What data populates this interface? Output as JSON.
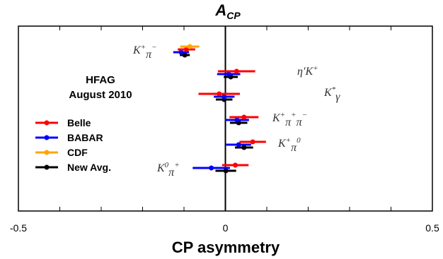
{
  "chart_data": {
    "type": "scatter",
    "title": "A",
    "title_sub": "CP",
    "xlabel": "CP asymmetry",
    "xlim": [
      -0.5,
      0.5
    ],
    "x_ticks": [
      "-0.5",
      "0",
      "0.5"
    ],
    "legend_position": "left",
    "annotations": [
      "HFAG",
      "August 2010"
    ],
    "series": [
      {
        "name": "Belle",
        "color": "#ff0000"
      },
      {
        "name": "BABAR",
        "color": "#0000ff"
      },
      {
        "name": "CDF",
        "color": "#ffa500"
      },
      {
        "name": "New Avg.",
        "color": "#000000"
      }
    ],
    "points": [
      {
        "process": 0,
        "series": 3,
        "value": -0.098,
        "err": 0.012
      },
      {
        "process": 0,
        "series": 1,
        "value": -0.107,
        "err": 0.019
      },
      {
        "process": 0,
        "series": 0,
        "value": -0.094,
        "err": 0.021
      },
      {
        "process": 0,
        "series": 2,
        "value": -0.086,
        "err": 0.023
      },
      {
        "process": 1,
        "series": 3,
        "value": 0.013,
        "err": 0.017
      },
      {
        "process": 1,
        "series": 1,
        "value": 0.008,
        "err": 0.028
      },
      {
        "process": 1,
        "series": 0,
        "value": 0.027,
        "err": 0.045
      },
      {
        "process": 2,
        "series": 3,
        "value": -0.003,
        "err": 0.02
      },
      {
        "process": 2,
        "series": 1,
        "value": -0.003,
        "err": 0.025
      },
      {
        "process": 2,
        "series": 0,
        "value": -0.015,
        "err": 0.05
      },
      {
        "process": 3,
        "series": 3,
        "value": 0.032,
        "err": 0.021
      },
      {
        "process": 3,
        "series": 1,
        "value": 0.028,
        "err": 0.029
      },
      {
        "process": 3,
        "series": 0,
        "value": 0.045,
        "err": 0.035
      },
      {
        "process": 4,
        "series": 3,
        "value": 0.045,
        "err": 0.022
      },
      {
        "process": 4,
        "series": 1,
        "value": 0.032,
        "err": 0.03
      },
      {
        "process": 4,
        "series": 0,
        "value": 0.066,
        "err": 0.032
      },
      {
        "process": 5,
        "series": 3,
        "value": 0.001,
        "err": 0.025
      },
      {
        "process": 5,
        "series": 1,
        "value": -0.034,
        "err": 0.045
      },
      {
        "process": 5,
        "series": 0,
        "value": 0.024,
        "err": 0.032
      }
    ],
    "process_labels": [
      {
        "base": "K",
        "sup1": "+",
        "mid": "π",
        "sup2": "−"
      },
      {
        "base": "η′K",
        "sup1": "+",
        "mid": "",
        "sup2": ""
      },
      {
        "base": "K",
        "sup1": "*",
        "mid": "γ",
        "sup2": ""
      },
      {
        "base": "K",
        "sup1": "+",
        "mid": "π",
        "sup2": "+",
        "mid2": "π",
        "sup3": "−"
      },
      {
        "base": "K",
        "sup1": "+",
        "mid": "π",
        "sup2": "0"
      },
      {
        "base": "K",
        "sup1": "0",
        "mid": "π",
        "sup2": "+"
      }
    ]
  }
}
